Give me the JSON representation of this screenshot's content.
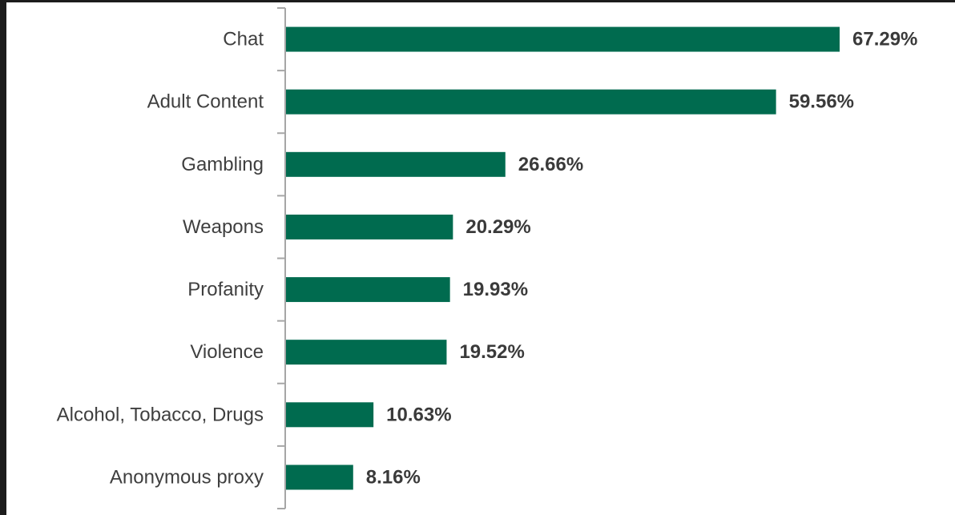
{
  "chart_data": {
    "type": "bar",
    "orientation": "horizontal",
    "categories": [
      "Chat",
      "Adult Content",
      "Gambling",
      "Weapons",
      "Profanity",
      "Violence",
      "Alcohol, Tobacco, Drugs",
      "Anonymous proxy"
    ],
    "values": [
      67.29,
      59.56,
      26.66,
      20.29,
      19.93,
      19.52,
      10.63,
      8.16
    ],
    "value_labels": [
      "67.29%",
      "59.56%",
      "26.66%",
      "20.29%",
      "19.93%",
      "19.52%",
      "10.63%",
      "8.16%"
    ],
    "title": "",
    "xlabel": "",
    "ylabel": "",
    "xlim": [
      0,
      100
    ],
    "grid": false,
    "legend": "none",
    "bar_color": "#006b4f",
    "axis_color": "#a6a6a6",
    "label_color": "#3f3f3f"
  }
}
